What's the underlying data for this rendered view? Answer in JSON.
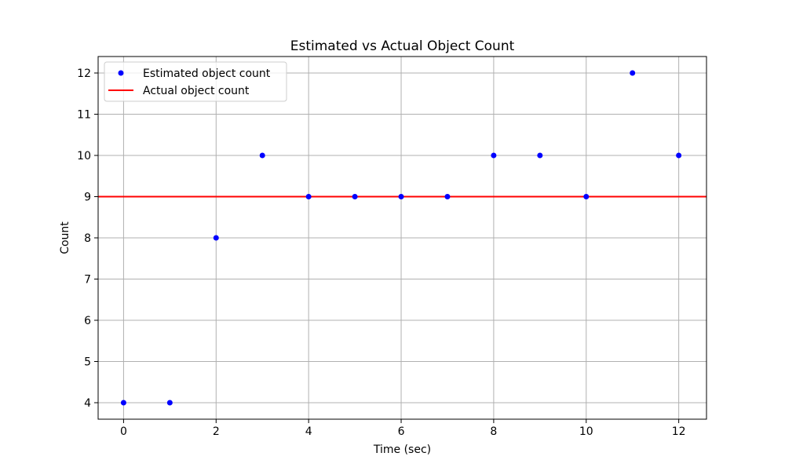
{
  "chart_data": {
    "type": "scatter",
    "title": "Estimated vs Actual Object Count",
    "xlabel": "Time (sec)",
    "ylabel": "Count",
    "xlim": [
      -0.55,
      12.6
    ],
    "ylim": [
      3.6,
      12.4
    ],
    "xticks": [
      0,
      2,
      4,
      6,
      8,
      10,
      12
    ],
    "yticks": [
      4,
      5,
      6,
      7,
      8,
      9,
      10,
      11,
      12
    ],
    "grid": true,
    "legend_position": "top-left",
    "series": [
      {
        "name": "Estimated object count",
        "kind": "scatter",
        "color": "#0000ff",
        "x": [
          0,
          1,
          2,
          3,
          4,
          5,
          6,
          7,
          8,
          9,
          10,
          11,
          12
        ],
        "y": [
          4,
          4,
          8,
          10,
          9,
          9,
          9,
          9,
          10,
          10,
          9,
          12,
          10
        ]
      },
      {
        "name": "Actual object count",
        "kind": "hline",
        "color": "#ff0000",
        "y": 9
      }
    ]
  }
}
